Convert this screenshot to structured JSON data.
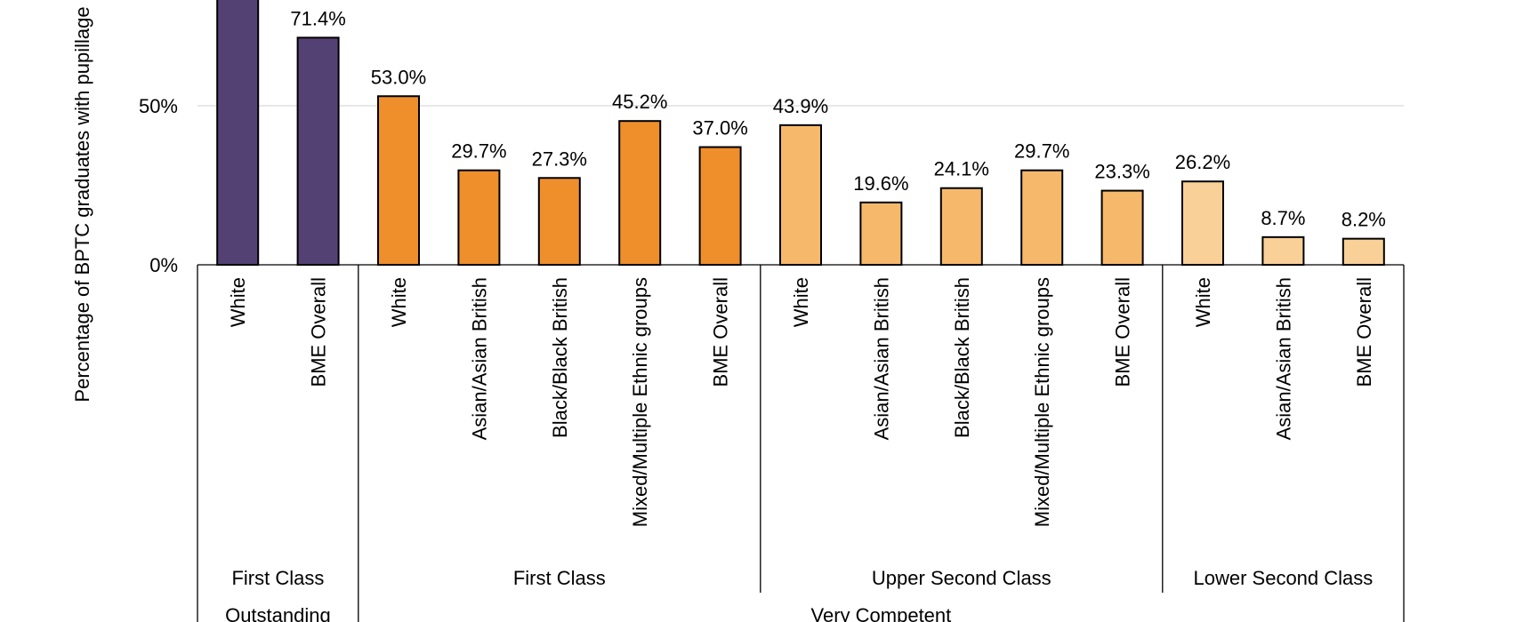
{
  "chart_data": {
    "type": "bar",
    "ylabel": "Percentage of BPTC graduates with pupillage",
    "ylim": [
      0,
      100
    ],
    "y_ticks": [
      "0%",
      "50%"
    ],
    "y_tick_values": [
      0,
      50
    ],
    "grid": true,
    "categories": [
      {
        "label": "White",
        "value": 84.0,
        "value_label": "",
        "group": 0
      },
      {
        "label": "BME Overall",
        "value": 71.4,
        "value_label": "71.4%",
        "group": 0
      },
      {
        "label": "White",
        "value": 53.0,
        "value_label": "53.0%",
        "group": 1
      },
      {
        "label": "Asian/Asian British",
        "value": 29.7,
        "value_label": "29.7%",
        "group": 1
      },
      {
        "label": "Black/Black British",
        "value": 27.3,
        "value_label": "27.3%",
        "group": 1
      },
      {
        "label": "Mixed/Multiple Ethnic groups",
        "value": 45.2,
        "value_label": "45.2%",
        "group": 1
      },
      {
        "label": "BME Overall",
        "value": 37.0,
        "value_label": "37.0%",
        "group": 1
      },
      {
        "label": "White",
        "value": 43.9,
        "value_label": "43.9%",
        "group": 2
      },
      {
        "label": "Asian/Asian British",
        "value": 19.6,
        "value_label": "19.6%",
        "group": 2
      },
      {
        "label": "Black/Black British",
        "value": 24.1,
        "value_label": "24.1%",
        "group": 2
      },
      {
        "label": "Mixed/Multiple Ethnic groups",
        "value": 29.7,
        "value_label": "29.7%",
        "group": 2
      },
      {
        "label": "BME Overall",
        "value": 23.3,
        "value_label": "23.3%",
        "group": 2
      },
      {
        "label": "White",
        "value": 26.2,
        "value_label": "26.2%",
        "group": 3
      },
      {
        "label": "Asian/Asian British",
        "value": 8.7,
        "value_label": "8.7%",
        "group": 3
      },
      {
        "label": "BME Overall",
        "value": 8.2,
        "value_label": "8.2%",
        "group": 3
      }
    ],
    "groups": [
      {
        "label": "First Class",
        "color": "#544174"
      },
      {
        "label": "First Class",
        "color": "#ee8f2c"
      },
      {
        "label": "Upper Second Class",
        "color": "#f6b96b"
      },
      {
        "label": "Lower Second Class",
        "color": "#f9d097"
      }
    ],
    "outer_groups": [
      {
        "label": "Outstanding",
        "groups": [
          0
        ]
      },
      {
        "label": "Very Competent",
        "groups": [
          1,
          2,
          3
        ]
      }
    ]
  }
}
